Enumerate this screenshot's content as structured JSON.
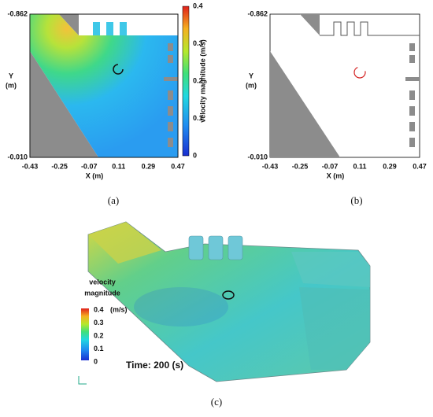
{
  "panels": [
    {
      "label": "(a)",
      "x_axis_label": "X (m)",
      "y_axis_label": [
        "Y",
        "(m)"
      ],
      "x_ticks": [
        "-0.43",
        "-0.25",
        "-0.07",
        "0.11",
        "0.29",
        "0.47"
      ],
      "y_ticks": [
        "-0.862",
        "-0.010"
      ],
      "colorbar": {
        "title": "velocity magnitude (m/s)",
        "ticks": [
          "0.4",
          "0.3",
          "0.2",
          "0.1",
          "0"
        ]
      }
    },
    {
      "label": "(b)",
      "x_axis_label": "X (m)",
      "y_axis_label": [
        "Y",
        "(m)"
      ],
      "x_ticks": [
        "-0.43",
        "-0.25",
        "-0.07",
        "0.11",
        "0.29",
        "0.47"
      ],
      "y_ticks": [
        "-0.862",
        "-0.010"
      ]
    },
    {
      "label": "(c)",
      "legend": {
        "title": [
          "velocity",
          "magnitude"
        ],
        "unit": "(m/s)",
        "ticks": [
          "0.4",
          "0.3",
          "0.2",
          "0.1",
          "0"
        ]
      },
      "time_label": "Time: 200 (s)"
    }
  ]
}
